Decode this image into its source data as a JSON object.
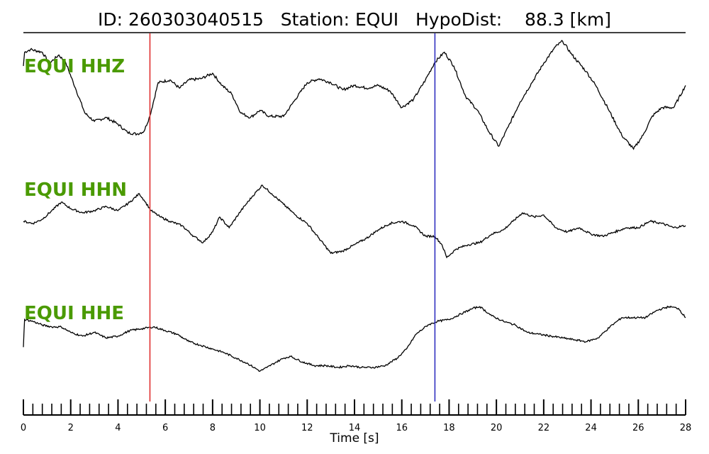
{
  "header": {
    "id_label": "ID:",
    "id_value": "260303040515",
    "station_label": "Station:",
    "station_value": "EQUI",
    "dist_label": "HypoDist:",
    "dist_value": "88.3",
    "dist_unit": "[km]"
  },
  "colors": {
    "trace": "#000000",
    "label": "#4a9a00",
    "p_pick": "#e03030",
    "s_pick": "#3030c0"
  },
  "chart_data": {
    "type": "line",
    "xlabel": "Time [s]",
    "xlim": [
      0,
      28
    ],
    "x_major_ticks": [
      0,
      2,
      4,
      6,
      8,
      10,
      12,
      14,
      16,
      18,
      20,
      22,
      24,
      26,
      28
    ],
    "x_major_labels": [
      "0",
      "2",
      "4",
      "6",
      "8",
      "10",
      "12",
      "14",
      "16",
      "18",
      "20",
      "22",
      "24",
      "26",
      "28"
    ],
    "x_minor_step": 0.4,
    "picks": [
      {
        "time": 5.35,
        "color": "#e03030"
      },
      {
        "time": 17.4,
        "color": "#3030c0"
      }
    ],
    "series": [
      {
        "name": "EQUI HHZ",
        "points": [
          [
            0,
            0.55
          ],
          [
            0.05,
            0.8
          ],
          [
            0.3,
            0.85
          ],
          [
            0.8,
            0.8
          ],
          [
            1.1,
            0.6
          ],
          [
            1.5,
            0.75
          ],
          [
            1.8,
            0.6
          ],
          [
            2.2,
            0.15
          ],
          [
            2.6,
            -0.3
          ],
          [
            3.0,
            -0.45
          ],
          [
            3.5,
            -0.38
          ],
          [
            4.0,
            -0.5
          ],
          [
            4.4,
            -0.65
          ],
          [
            4.8,
            -0.68
          ],
          [
            5.1,
            -0.63
          ],
          [
            5.35,
            -0.35
          ],
          [
            5.7,
            0.25
          ],
          [
            6.2,
            0.3
          ],
          [
            6.6,
            0.15
          ],
          [
            7.0,
            0.3
          ],
          [
            7.5,
            0.32
          ],
          [
            8.0,
            0.42
          ],
          [
            8.4,
            0.2
          ],
          [
            8.8,
            0.05
          ],
          [
            9.2,
            -0.3
          ],
          [
            9.6,
            -0.38
          ],
          [
            10.0,
            -0.25
          ],
          [
            10.4,
            -0.36
          ],
          [
            11.0,
            -0.36
          ],
          [
            11.5,
            -0.05
          ],
          [
            12.0,
            0.25
          ],
          [
            12.5,
            0.32
          ],
          [
            13.0,
            0.25
          ],
          [
            13.5,
            0.12
          ],
          [
            14.0,
            0.2
          ],
          [
            14.5,
            0.15
          ],
          [
            15.0,
            0.2
          ],
          [
            15.5,
            0.1
          ],
          [
            16.0,
            -0.2
          ],
          [
            16.5,
            -0.05
          ],
          [
            17.0,
            0.3
          ],
          [
            17.4,
            0.62
          ],
          [
            17.8,
            0.8
          ],
          [
            18.2,
            0.55
          ],
          [
            18.7,
            0.0
          ],
          [
            19.2,
            -0.25
          ],
          [
            19.7,
            -0.65
          ],
          [
            20.1,
            -0.9
          ],
          [
            20.5,
            -0.55
          ],
          [
            21.0,
            -0.1
          ],
          [
            21.5,
            0.25
          ],
          [
            22.0,
            0.6
          ],
          [
            22.5,
            0.9
          ],
          [
            22.8,
            1.0
          ],
          [
            23.2,
            0.75
          ],
          [
            23.8,
            0.45
          ],
          [
            24.2,
            0.2
          ],
          [
            24.7,
            -0.2
          ],
          [
            25.3,
            -0.7
          ],
          [
            25.8,
            -0.95
          ],
          [
            26.2,
            -0.7
          ],
          [
            26.6,
            -0.35
          ],
          [
            27.0,
            -0.2
          ],
          [
            27.5,
            -0.2
          ],
          [
            28,
            0.2
          ]
        ]
      },
      {
        "name": "EQUI HHN",
        "points": [
          [
            0,
            0.1
          ],
          [
            0.4,
            0.05
          ],
          [
            0.8,
            0.15
          ],
          [
            1.2,
            0.35
          ],
          [
            1.6,
            0.55
          ],
          [
            2.0,
            0.4
          ],
          [
            2.5,
            0.3
          ],
          [
            3.0,
            0.35
          ],
          [
            3.5,
            0.45
          ],
          [
            4.0,
            0.35
          ],
          [
            4.5,
            0.55
          ],
          [
            4.9,
            0.75
          ],
          [
            5.1,
            0.6
          ],
          [
            5.4,
            0.35
          ],
          [
            5.8,
            0.2
          ],
          [
            6.2,
            0.1
          ],
          [
            6.7,
            0.0
          ],
          [
            7.2,
            -0.25
          ],
          [
            7.6,
            -0.4
          ],
          [
            8.0,
            -0.15
          ],
          [
            8.3,
            0.2
          ],
          [
            8.7,
            -0.05
          ],
          [
            9.2,
            0.35
          ],
          [
            9.7,
            0.7
          ],
          [
            10.1,
            0.95
          ],
          [
            10.5,
            0.75
          ],
          [
            11.0,
            0.5
          ],
          [
            11.5,
            0.25
          ],
          [
            12.0,
            0.05
          ],
          [
            12.5,
            -0.3
          ],
          [
            13.0,
            -0.65
          ],
          [
            13.5,
            -0.6
          ],
          [
            14.0,
            -0.45
          ],
          [
            14.5,
            -0.3
          ],
          [
            15.0,
            -0.1
          ],
          [
            15.5,
            0.05
          ],
          [
            16.0,
            0.1
          ],
          [
            16.5,
            0.0
          ],
          [
            17.0,
            -0.25
          ],
          [
            17.4,
            -0.25
          ],
          [
            17.7,
            -0.45
          ],
          [
            17.9,
            -0.75
          ],
          [
            18.3,
            -0.55
          ],
          [
            18.8,
            -0.45
          ],
          [
            19.3,
            -0.4
          ],
          [
            19.8,
            -0.2
          ],
          [
            20.3,
            -0.1
          ],
          [
            20.7,
            0.1
          ],
          [
            21.1,
            0.3
          ],
          [
            21.6,
            0.2
          ],
          [
            22.0,
            0.25
          ],
          [
            22.5,
            -0.05
          ],
          [
            23.0,
            -0.15
          ],
          [
            23.5,
            -0.05
          ],
          [
            24.0,
            -0.2
          ],
          [
            24.5,
            -0.25
          ],
          [
            25.0,
            -0.15
          ],
          [
            25.5,
            -0.05
          ],
          [
            26.0,
            -0.05
          ],
          [
            26.5,
            0.1
          ],
          [
            27.0,
            0.05
          ],
          [
            27.5,
            -0.05
          ],
          [
            28,
            0.0
          ]
        ]
      },
      {
        "name": "EQUI HHE",
        "points": [
          [
            0,
            -0.45
          ],
          [
            0.05,
            0.3
          ],
          [
            0.4,
            0.25
          ],
          [
            0.8,
            0.15
          ],
          [
            1.2,
            0.1
          ],
          [
            1.6,
            0.1
          ],
          [
            2.0,
            -0.05
          ],
          [
            2.5,
            -0.15
          ],
          [
            3.0,
            -0.05
          ],
          [
            3.5,
            -0.2
          ],
          [
            4.0,
            -0.15
          ],
          [
            4.5,
            0.0
          ],
          [
            5.0,
            0.05
          ],
          [
            5.5,
            0.1
          ],
          [
            6.0,
            0.0
          ],
          [
            6.5,
            -0.1
          ],
          [
            7.0,
            -0.3
          ],
          [
            7.5,
            -0.4
          ],
          [
            8.0,
            -0.5
          ],
          [
            8.5,
            -0.6
          ],
          [
            9.0,
            -0.75
          ],
          [
            9.5,
            -0.9
          ],
          [
            10.0,
            -1.1
          ],
          [
            10.3,
            -1.0
          ],
          [
            10.7,
            -0.85
          ],
          [
            11.0,
            -0.75
          ],
          [
            11.3,
            -0.7
          ],
          [
            11.8,
            -0.85
          ],
          [
            12.3,
            -0.95
          ],
          [
            12.8,
            -0.95
          ],
          [
            13.3,
            -1.0
          ],
          [
            13.8,
            -0.95
          ],
          [
            14.3,
            -1.0
          ],
          [
            14.8,
            -1.0
          ],
          [
            15.3,
            -0.95
          ],
          [
            15.8,
            -0.75
          ],
          [
            16.2,
            -0.5
          ],
          [
            16.6,
            -0.1
          ],
          [
            17.1,
            0.15
          ],
          [
            17.5,
            0.25
          ],
          [
            18.0,
            0.3
          ],
          [
            18.5,
            0.45
          ],
          [
            19.0,
            0.6
          ],
          [
            19.3,
            0.65
          ],
          [
            19.8,
            0.4
          ],
          [
            20.3,
            0.25
          ],
          [
            20.8,
            0.15
          ],
          [
            21.3,
            -0.05
          ],
          [
            21.8,
            -0.1
          ],
          [
            22.3,
            -0.15
          ],
          [
            22.8,
            -0.2
          ],
          [
            23.3,
            -0.25
          ],
          [
            23.8,
            -0.3
          ],
          [
            24.3,
            -0.2
          ],
          [
            24.8,
            0.1
          ],
          [
            25.3,
            0.35
          ],
          [
            25.8,
            0.35
          ],
          [
            26.3,
            0.35
          ],
          [
            26.8,
            0.55
          ],
          [
            27.3,
            0.65
          ],
          [
            27.7,
            0.6
          ],
          [
            28,
            0.35
          ]
        ]
      }
    ]
  }
}
